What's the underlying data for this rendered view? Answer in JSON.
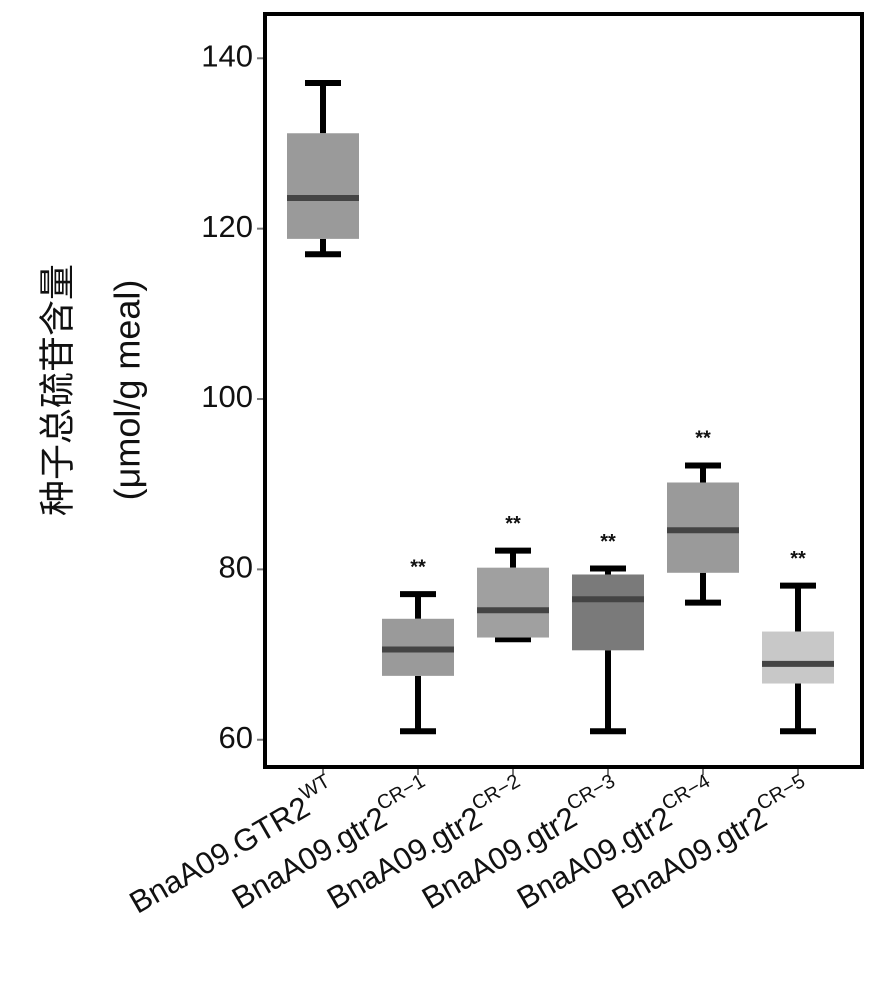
{
  "chart_data": {
    "type": "box",
    "y_label_lines": [
      "种子总硫苷含量",
      "(μmol/g meal)"
    ],
    "categories": [
      "BnaA09.GTR2",
      "BnaA09.gtr2",
      "BnaA09.gtr2",
      "BnaA09.gtr2",
      "BnaA09.gtr2",
      "BnaA09.gtr2"
    ],
    "category_superscripts": [
      "WT",
      "CR−1",
      "CR−2",
      "CR−3",
      "CR−4",
      "CR−5"
    ],
    "stats": {
      "max": [
        137.1,
        77.1,
        82.2,
        80.1,
        92.2,
        78.1
      ],
      "q3": [
        131.2,
        74.2,
        80.2,
        79.4,
        90.2,
        72.7
      ],
      "median": [
        123.6,
        70.6,
        75.2,
        76.5,
        84.6,
        68.9
      ],
      "q1": [
        118.8,
        67.5,
        72.0,
        70.5,
        79.6,
        66.6
      ],
      "min": [
        117.0,
        61.0,
        71.8,
        61.0,
        76.1,
        61.0
      ]
    },
    "colors": [
      "#9a9a9a",
      "#9a9a9a",
      "#a0a0a0",
      "#7a7a7a",
      "#9a9a9a",
      "#c8c8c8"
    ],
    "median_color": "#444444",
    "annotations": [
      null,
      "**",
      "**",
      "**",
      "**",
      "**"
    ],
    "ylim": [
      56.8,
      145.2
    ],
    "yticks": [
      60,
      80,
      100,
      120,
      140
    ]
  }
}
